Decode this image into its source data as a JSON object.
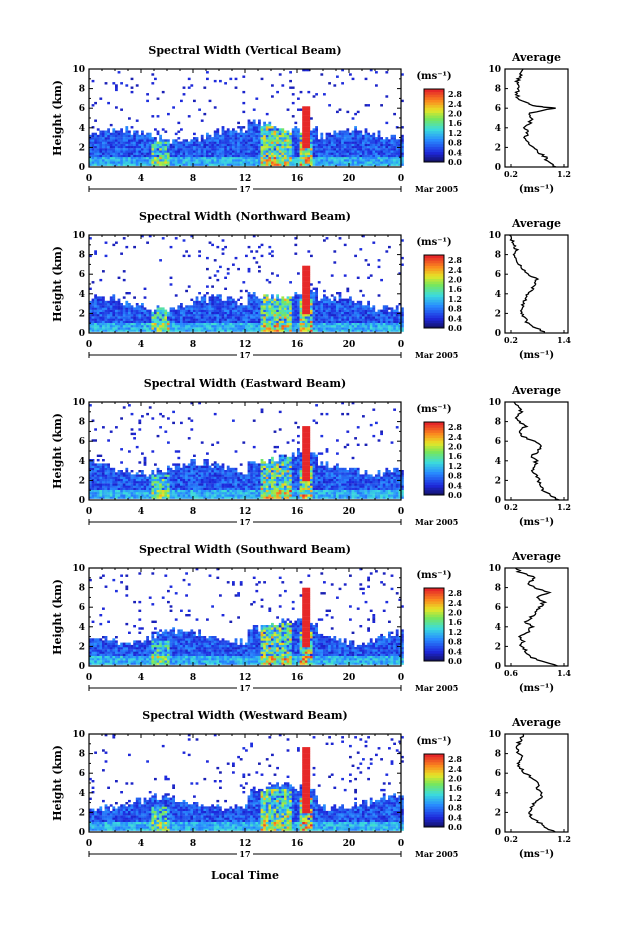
{
  "figure": {
    "xlabel_bottom": "Local Time",
    "date_day": "17",
    "date_label": "Mar 2005"
  },
  "chart_data": [
    {
      "type": "heatmap",
      "title": "Spectral Width (Vertical Beam)",
      "ylabel": "Height (km)",
      "xlim": [
        0,
        24
      ],
      "ylim": [
        0,
        10
      ],
      "xticks": [
        "0",
        "4",
        "8",
        "12",
        "16",
        "20",
        "0"
      ],
      "yticks": [
        "0",
        "2",
        "4",
        "6",
        "8",
        "10"
      ],
      "colorbar": {
        "unit": "(ms⁻¹)",
        "ticks": [
          "0.0",
          "0.4",
          "0.8",
          "1.2",
          "1.6",
          "2.0",
          "2.4",
          "2.8"
        ],
        "range": [
          0,
          2.8
        ]
      },
      "avg_profile": {
        "title": "Average",
        "xlabel": "(ms⁻¹)",
        "xticks": [
          "0.2",
          "1.2"
        ],
        "xlim": [
          0.0,
          1.4
        ],
        "height_km": [
          0,
          0.5,
          1,
          1.5,
          2,
          2.5,
          3,
          3.5,
          4,
          4.5,
          5,
          5.5,
          6,
          6.2,
          6.5,
          7,
          7.5,
          8,
          8.5,
          9,
          9.5,
          10
        ],
        "width": [
          1.15,
          0.95,
          0.9,
          0.75,
          0.6,
          0.55,
          0.45,
          0.5,
          0.45,
          0.55,
          0.6,
          0.55,
          1.1,
          0.7,
          0.5,
          0.3,
          0.25,
          0.3,
          0.25,
          0.3,
          0.35,
          0.4
        ]
      },
      "visual": {
        "top_km": 3.2,
        "strip": [
          13.0,
          16.8
        ]
      }
    },
    {
      "type": "heatmap",
      "title": "Spectral Width (Northward Beam)",
      "ylabel": "Height (km)",
      "xlim": [
        0,
        24
      ],
      "ylim": [
        0,
        10
      ],
      "xticks": [
        "0",
        "4",
        "8",
        "12",
        "16",
        "20",
        "0"
      ],
      "yticks": [
        "0",
        "2",
        "4",
        "6",
        "8",
        "10"
      ],
      "colorbar": {
        "unit": "(ms⁻¹)",
        "ticks": [
          "0.0",
          "0.4",
          "0.8",
          "1.2",
          "1.6",
          "2.0",
          "2.4",
          "2.8"
        ],
        "range": [
          0,
          2.8
        ]
      },
      "avg_profile": {
        "title": "Average",
        "xlabel": "(ms⁻¹)",
        "xticks": [
          "0.2",
          "1.4"
        ],
        "xlim": [
          0.1,
          1.5
        ],
        "height_km": [
          0,
          0.5,
          1,
          1.5,
          2,
          2.5,
          3,
          3.5,
          4,
          4.5,
          5,
          5.5,
          6,
          6.5,
          7,
          7.5,
          8,
          8.5,
          9,
          9.5,
          10
        ],
        "width": [
          1.0,
          0.8,
          0.6,
          0.55,
          0.45,
          0.5,
          0.5,
          0.55,
          0.6,
          0.7,
          0.75,
          0.8,
          0.6,
          0.5,
          0.4,
          0.35,
          0.3,
          0.35,
          0.3,
          0.25,
          0.2
        ]
      },
      "visual": {
        "top_km": 3.0,
        "strip": [
          13.0,
          16.8
        ]
      }
    },
    {
      "type": "heatmap",
      "title": "Spectral Width (Eastward Beam)",
      "ylabel": "Height (km)",
      "xlim": [
        0,
        24
      ],
      "ylim": [
        0,
        10
      ],
      "xticks": [
        "0",
        "4",
        "8",
        "12",
        "16",
        "20",
        "0"
      ],
      "yticks": [
        "0",
        "2",
        "4",
        "6",
        "8",
        "10"
      ],
      "colorbar": {
        "unit": "(ms⁻¹)",
        "ticks": [
          "0.0",
          "0.4",
          "0.8",
          "1.2",
          "1.6",
          "2.0",
          "2.4",
          "2.8"
        ],
        "range": [
          0,
          2.8
        ]
      },
      "avg_profile": {
        "title": "Average",
        "xlabel": "(ms⁻¹)",
        "xticks": [
          "0.2",
          "1.2"
        ],
        "xlim": [
          0.0,
          1.4
        ],
        "height_km": [
          0,
          0.5,
          1,
          1.5,
          2,
          2.5,
          3,
          3.5,
          4,
          4.5,
          5,
          5.5,
          6,
          6.5,
          7,
          7.5,
          8,
          8.5,
          9,
          9.5,
          10
        ],
        "width": [
          1.2,
          1.0,
          0.85,
          0.8,
          0.75,
          0.7,
          0.6,
          0.65,
          0.7,
          0.6,
          0.75,
          0.8,
          0.65,
          0.4,
          0.3,
          0.45,
          0.3,
          0.25,
          0.35,
          0.3,
          0.2
        ]
      },
      "visual": {
        "top_km": 3.3,
        "strip": [
          13.0,
          16.8
        ]
      }
    },
    {
      "type": "heatmap",
      "title": "Spectral Width (Southward Beam)",
      "ylabel": "Height (km)",
      "xlim": [
        0,
        24
      ],
      "ylim": [
        0,
        10
      ],
      "xticks": [
        "0",
        "4",
        "8",
        "12",
        "16",
        "20",
        "0"
      ],
      "yticks": [
        "0",
        "2",
        "4",
        "6",
        "8",
        "10"
      ],
      "colorbar": {
        "unit": "(ms⁻¹)",
        "ticks": [
          "0.0",
          "0.4",
          "0.8",
          "1.2",
          "1.6",
          "2.0",
          "2.4",
          "2.8"
        ],
        "range": [
          0,
          2.8
        ]
      },
      "avg_profile": {
        "title": "Average",
        "xlabel": "(ms⁻¹)",
        "xticks": [
          "0.6",
          "1.4"
        ],
        "xlim": [
          0.3,
          1.5
        ],
        "height_km": [
          0,
          0.5,
          1,
          1.5,
          2,
          2.5,
          3,
          3.5,
          4,
          4.5,
          5,
          5.5,
          6,
          6.5,
          7,
          7.5,
          8,
          8.5,
          9,
          9.5,
          10
        ],
        "width": [
          1.3,
          1.0,
          0.75,
          0.7,
          0.6,
          0.65,
          0.6,
          0.75,
          0.8,
          0.7,
          0.8,
          0.9,
          0.95,
          1.05,
          0.9,
          1.15,
          0.85,
          0.75,
          0.9,
          0.6,
          0.5
        ]
      },
      "visual": {
        "top_km": 3.0,
        "strip": [
          13.0,
          16.8
        ]
      }
    },
    {
      "type": "heatmap",
      "title": "Spectral Width (Westward Beam)",
      "ylabel": "Height (km)",
      "xlim": [
        0,
        24
      ],
      "ylim": [
        0,
        10
      ],
      "xticks": [
        "0",
        "4",
        "8",
        "12",
        "16",
        "20",
        "0"
      ],
      "yticks": [
        "0",
        "2",
        "4",
        "6",
        "8",
        "10"
      ],
      "colorbar": {
        "unit": "(ms⁻¹)",
        "ticks": [
          "0.0",
          "0.4",
          "0.8",
          "1.2",
          "1.6",
          "2.0",
          "2.4",
          "2.8"
        ],
        "range": [
          0,
          2.8
        ]
      },
      "avg_profile": {
        "title": "Average",
        "xlabel": "(ms⁻¹)",
        "xticks": [
          "0.2",
          "1.2"
        ],
        "xlim": [
          0.0,
          1.4
        ],
        "height_km": [
          0,
          0.5,
          1,
          1.5,
          2,
          2.5,
          3,
          3.5,
          4,
          4.5,
          5,
          5.5,
          6,
          6.5,
          7,
          7.5,
          8,
          8.5,
          9,
          9.5,
          10
        ],
        "width": [
          1.1,
          0.9,
          0.75,
          0.6,
          0.55,
          0.6,
          0.65,
          0.8,
          0.85,
          0.7,
          0.75,
          0.6,
          0.45,
          0.35,
          0.3,
          0.4,
          0.3,
          0.25,
          0.3,
          0.35,
          0.4
        ]
      },
      "visual": {
        "top_km": 3.0,
        "strip": [
          13.0,
          16.8
        ]
      }
    }
  ]
}
